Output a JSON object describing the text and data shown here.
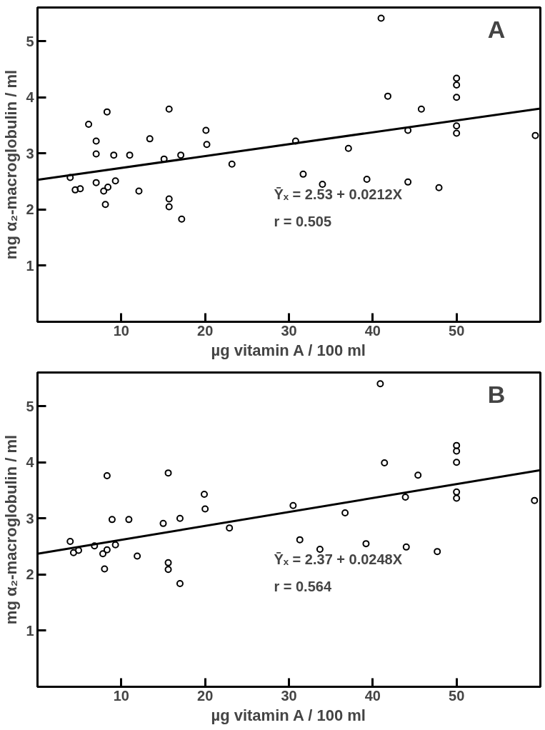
{
  "chart_data": [
    {
      "type": "scatter",
      "xlabel": "µg vitamin A / 100 ml",
      "ylabel": "mg α₂-macroglobulin / ml",
      "xlim": [
        0,
        60
      ],
      "ylim": [
        0,
        5.6
      ],
      "xticks": [
        10,
        20,
        30,
        40,
        50
      ],
      "yticks": [
        1,
        2,
        3,
        4,
        5
      ],
      "grid": false,
      "annotations": [
        "A",
        "Ȳₓ = 2.53 + 0.0212X",
        "r = 0.505"
      ],
      "series": [
        {
          "marker": "circle",
          "color": "#000000",
          "x": [
            3.9,
            4.5,
            5.1,
            6.1,
            7.0,
            7.0,
            8.3,
            7.0,
            7.9,
            8.4,
            9.3,
            8.1,
            9.1,
            11.0,
            12.1,
            13.4,
            15.1,
            15.7,
            15.7,
            15.7,
            17.1,
            17.2,
            20.1,
            20.2,
            23.2,
            41.0,
            30.8,
            37.1,
            31.7,
            34.0,
            39.3,
            41.8,
            45.8,
            44.2,
            44.2,
            47.9,
            50,
            50,
            50,
            50,
            50,
            59.4
          ],
          "values": [
            2.57,
            2.35,
            2.37,
            3.52,
            3.22,
            2.99,
            3.74,
            2.48,
            2.33,
            2.4,
            2.51,
            2.09,
            2.97,
            2.97,
            2.33,
            3.26,
            2.9,
            3.79,
            2.19,
            2.05,
            2.97,
            1.83,
            3.41,
            3.16,
            2.81,
            5.41,
            3.22,
            3.09,
            2.63,
            2.45,
            2.54,
            4.02,
            3.79,
            3.41,
            2.49,
            2.39,
            4.34,
            4.22,
            4.0,
            3.49,
            3.36,
            3.32
          ]
        },
        {
          "type": "line",
          "color": "#000000",
          "x": [
            0,
            60
          ],
          "values": [
            2.53,
            3.8
          ]
        }
      ]
    },
    {
      "type": "scatter",
      "xlabel": "µg vitamin A / 100 ml",
      "ylabel": "mg α₂-macroglobulin / ml",
      "xlim": [
        0,
        60
      ],
      "ylim": [
        0,
        5.6
      ],
      "xticks": [
        10,
        20,
        30,
        40,
        50
      ],
      "yticks": [
        1,
        2,
        3,
        4,
        5
      ],
      "grid": false,
      "annotations": [
        "B",
        "Ȳₓ = 2.37 + 0.0248X",
        "r = 0.564"
      ],
      "series": [
        {
          "marker": "circle",
          "color": "#000000",
          "x": [
            3.9,
            4.3,
            4.9,
            6.8,
            7.8,
            8.3,
            9.3,
            8.3,
            8.9,
            10.9,
            8.0,
            11.9,
            15.0,
            15.6,
            15.6,
            15.6,
            17.0,
            17.0,
            19.9,
            20.0,
            22.9,
            40.9,
            41.4,
            45.4,
            43.9,
            30.5,
            36.7,
            31.3,
            33.7,
            39.2,
            44.0,
            47.7,
            50,
            50,
            50,
            50,
            50,
            59.3
          ],
          "values": [
            2.59,
            2.39,
            2.43,
            2.51,
            2.37,
            2.44,
            2.53,
            3.76,
            2.98,
            2.98,
            2.1,
            2.33,
            2.91,
            3.81,
            2.21,
            2.09,
            3.0,
            1.84,
            3.43,
            3.17,
            2.83,
            5.4,
            3.99,
            3.77,
            3.38,
            3.23,
            3.1,
            2.62,
            2.45,
            2.55,
            2.49,
            2.41,
            4.3,
            4.2,
            4.0,
            3.47,
            3.36,
            3.32
          ]
        },
        {
          "type": "line",
          "color": "#000000",
          "x": [
            0,
            60
          ],
          "values": [
            2.37,
            3.86
          ]
        }
      ]
    }
  ]
}
